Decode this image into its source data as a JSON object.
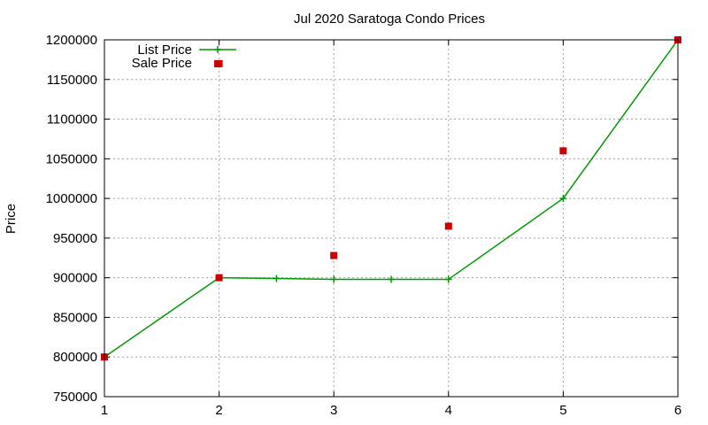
{
  "chart_data": {
    "type": "line",
    "title": "Jul 2020 Saratoga Condo Prices",
    "xlabel": "",
    "ylabel": "Price",
    "xlim": [
      1,
      6
    ],
    "ylim": [
      750000,
      1200000
    ],
    "x_ticks": [
      1,
      2,
      3,
      4,
      5,
      6
    ],
    "y_ticks": [
      750000,
      800000,
      850000,
      900000,
      950000,
      1000000,
      1050000,
      1100000,
      1150000,
      1200000
    ],
    "grid": true,
    "legend_position": "top-left",
    "series": [
      {
        "name": "List Price",
        "kind": "line",
        "marker": "plus",
        "color": "#009900",
        "points": [
          {
            "x": 1,
            "y": 800000
          },
          {
            "x": 2,
            "y": 900000
          },
          {
            "x": 2.5,
            "y": 899000
          },
          {
            "x": 3,
            "y": 898000
          },
          {
            "x": 3.5,
            "y": 898000
          },
          {
            "x": 4,
            "y": 898000
          },
          {
            "x": 5,
            "y": 1000000
          },
          {
            "x": 6,
            "y": 1200000
          }
        ]
      },
      {
        "name": "Sale Price",
        "kind": "scatter",
        "marker": "square",
        "color": "#cc0000",
        "points": [
          {
            "x": 1,
            "y": 800000
          },
          {
            "x": 2,
            "y": 900000
          },
          {
            "x": 2,
            "y": 1170000
          },
          {
            "x": 3,
            "y": 928000
          },
          {
            "x": 4,
            "y": 965000
          },
          {
            "x": 5,
            "y": 1060000
          },
          {
            "x": 6,
            "y": 1200000
          }
        ]
      }
    ]
  }
}
